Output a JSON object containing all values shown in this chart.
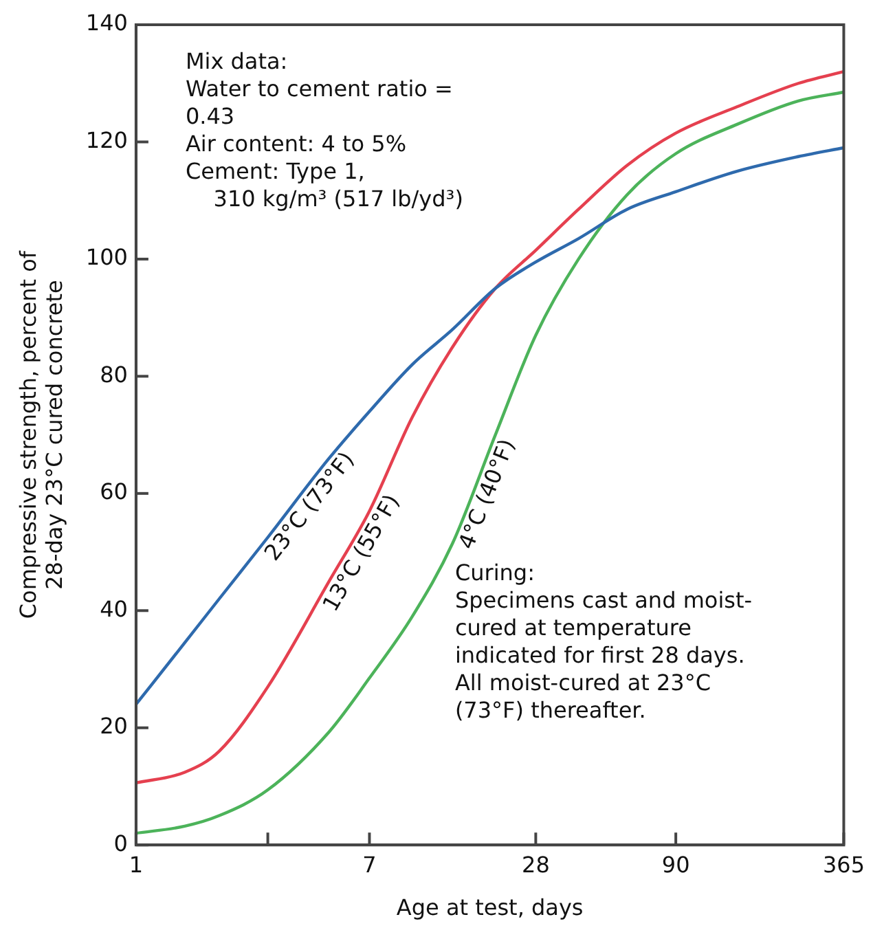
{
  "chart_data": {
    "type": "line",
    "xlabel": "Age at test, days",
    "ylabel": "Compressive strength, percent of\n28-day 23°C cured concrete",
    "log": "x",
    "xlim": [
      1,
      365
    ],
    "xticks": [
      1,
      {
        "value": 3,
        "label": null
      },
      7,
      28,
      90,
      365
    ],
    "ylim": [
      0,
      140
    ],
    "yticks": [
      0,
      20,
      40,
      60,
      80,
      100,
      120,
      140
    ],
    "grid": false,
    "legend": false,
    "marker": "none",
    "line_style": "solid",
    "x": [
      1,
      1.5,
      2,
      3,
      5,
      7,
      10,
      14,
      20,
      28,
      40,
      60,
      90,
      150,
      250,
      365
    ],
    "series": [
      {
        "name": "23°C (73°F)",
        "color": "#2e6aad",
        "values": [
          24,
          34.5,
          42,
          52.5,
          66,
          74,
          82,
          88,
          95,
          99.5,
          103.5,
          108.5,
          111.5,
          115,
          117.5,
          119
        ]
      },
      {
        "name": "13°C (55°F)",
        "color": "#e5404f",
        "values": [
          10.6,
          12.4,
          16,
          27,
          45,
          57,
          73,
          85,
          95,
          101.5,
          108.5,
          116,
          121.5,
          126,
          130,
          132
        ]
      },
      {
        "name": "4°C (40°F)",
        "color": "#4cb35a",
        "values": [
          2,
          3.2,
          5,
          9.4,
          19.3,
          28.5,
          39,
          51.5,
          70,
          87,
          100,
          111,
          118,
          123,
          127,
          128.5
        ]
      }
    ],
    "annotations": [
      "Mix data:\nWater to cement ratio =\n0.43\nAir content: 4 to 5%\nCement: Type 1,\n    310 kg/m³ (517 lb/yd³)",
      "Curing:\nSpecimens cast and moist-\ncured at temperature\nindicated for first 28 days.\nAll moist-cured at 23°C\n(73°F) thereafter."
    ]
  }
}
